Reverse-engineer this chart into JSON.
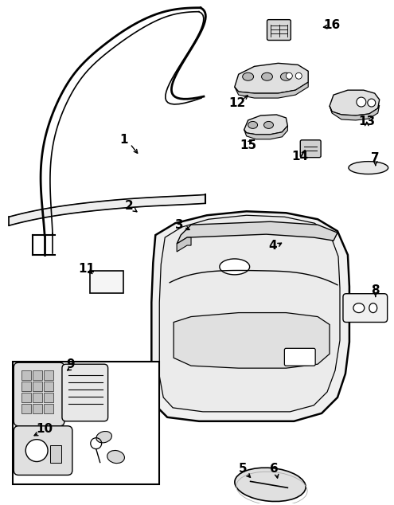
{
  "bg_color": "#ffffff",
  "line_color": "#000000",
  "figsize": [
    4.95,
    6.34
  ],
  "dpi": 100,
  "label_fontsize": 11
}
